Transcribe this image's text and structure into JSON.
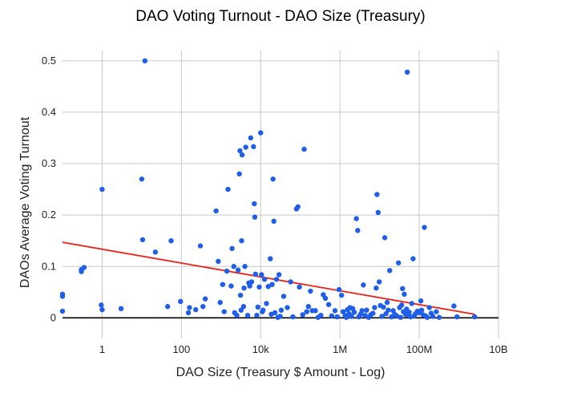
{
  "chart_data": {
    "type": "scatter",
    "title": "DAO Voting Turnout - DAO Size (Treasury)",
    "xlabel": "DAO Size (Treasury $ Amount - Log)",
    "ylabel": "DAOs Average Voting Turnout",
    "x_scale": "log10",
    "xlim": [
      0.1,
      10000000000
    ],
    "ylim": [
      -0.04,
      0.52
    ],
    "x_ticks": [
      {
        "value": 1,
        "label": "1"
      },
      {
        "value": 100,
        "label": "100"
      },
      {
        "value": 10000,
        "label": "10k"
      },
      {
        "value": 1000000,
        "label": "1M"
      },
      {
        "value": 100000000,
        "label": "100M"
      },
      {
        "value": 10000000000,
        "label": "10B"
      }
    ],
    "y_ticks": [
      {
        "value": 0,
        "label": "0"
      },
      {
        "value": 0.1,
        "label": "0.1"
      },
      {
        "value": 0.2,
        "label": "0.2"
      },
      {
        "value": 0.3,
        "label": "0.3"
      },
      {
        "value": 0.4,
        "label": "0.4"
      },
      {
        "value": 0.5,
        "label": "0.5"
      }
    ],
    "grid": true,
    "colors": {
      "points": "#1f5ee8",
      "trendline": "#e8201a",
      "zero_line": "#000000",
      "grid": "#c8c8c8"
    },
    "trendline": {
      "x_start": 0.1,
      "y_start": 0.147,
      "x_end": 2500000000,
      "y_end": 0.007
    },
    "points": [
      [
        0.1,
        0.046
      ],
      [
        0.1,
        0.042
      ],
      [
        0.1,
        0.013
      ],
      [
        0.3,
        0.09
      ],
      [
        0.3,
        0.094
      ],
      [
        0.35,
        0.098
      ],
      [
        0.95,
        0.025
      ],
      [
        1,
        0.016
      ],
      [
        1,
        0.25
      ],
      [
        3,
        0.018
      ],
      [
        10,
        0.27
      ],
      [
        10.5,
        0.152
      ],
      [
        12,
        0.5
      ],
      [
        22,
        0.128
      ],
      [
        45,
        0.022
      ],
      [
        55,
        0.15
      ],
      [
        95,
        0.032
      ],
      [
        150,
        0.01
      ],
      [
        160,
        0.02
      ],
      [
        230,
        0.016
      ],
      [
        300,
        0.14
      ],
      [
        350,
        0.022
      ],
      [
        400,
        0.037
      ],
      [
        750,
        0.208
      ],
      [
        850,
        0.11
      ],
      [
        950,
        0.03
      ],
      [
        1100,
        0.065
      ],
      [
        1200,
        0.012
      ],
      [
        1400,
        0.091
      ],
      [
        1500,
        0.25
      ],
      [
        1800,
        0.062
      ],
      [
        1900,
        0.135
      ],
      [
        2100,
        0.1
      ],
      [
        2200,
        0.01
      ],
      [
        2500,
        0.005
      ],
      [
        2700,
        0.093
      ],
      [
        2900,
        0.28
      ],
      [
        3000,
        0.325
      ],
      [
        3100,
        0.044
      ],
      [
        3200,
        0.015
      ],
      [
        3300,
        0.15
      ],
      [
        3400,
        0.317
      ],
      [
        3700,
        0.022
      ],
      [
        3800,
        0.058
      ],
      [
        4000,
        0.1
      ],
      [
        4200,
        0.332
      ],
      [
        4700,
        0.005
      ],
      [
        5000,
        0.068
      ],
      [
        5300,
        0.062
      ],
      [
        5600,
        0.35
      ],
      [
        5900,
        0.07
      ],
      [
        6600,
        0.333
      ],
      [
        6900,
        0.222
      ],
      [
        7100,
        0.196
      ],
      [
        7400,
        0.085
      ],
      [
        8000,
        0.005
      ],
      [
        8500,
        0.021
      ],
      [
        9200,
        0.06
      ],
      [
        10000,
        0.36
      ],
      [
        10500,
        0.084
      ],
      [
        11000,
        0.012
      ],
      [
        11500,
        0.015
      ],
      [
        12500,
        0.075
      ],
      [
        14000,
        0.028
      ],
      [
        15500,
        0.061
      ],
      [
        17500,
        0.115
      ],
      [
        18500,
        0.007
      ],
      [
        19500,
        0.065
      ],
      [
        20500,
        0.27
      ],
      [
        21500,
        0.188
      ],
      [
        23000,
        0.01
      ],
      [
        25000,
        0.075
      ],
      [
        27000,
        0.001
      ],
      [
        29000,
        0.084
      ],
      [
        31000,
        0.003
      ],
      [
        33000,
        0.015
      ],
      [
        38000,
        0.042
      ],
      [
        47000,
        0.02
      ],
      [
        57000,
        0.07
      ],
      [
        65000,
        0.002
      ],
      [
        80000,
        0.212
      ],
      [
        87000,
        0.216
      ],
      [
        95000,
        0.06
      ],
      [
        115000,
        0.006
      ],
      [
        125000,
        0.328
      ],
      [
        145000,
        0.012
      ],
      [
        160000,
        0.022
      ],
      [
        180000,
        0.052
      ],
      [
        200000,
        0.014
      ],
      [
        240000,
        0.014
      ],
      [
        280000,
        0.001
      ],
      [
        330000,
        0.005
      ],
      [
        380000,
        0.045
      ],
      [
        430000,
        0.038
      ],
      [
        520000,
        0.026
      ],
      [
        620000,
        0.004
      ],
      [
        750000,
        0.014
      ],
      [
        850000,
        0.002
      ],
      [
        950000,
        0.055
      ],
      [
        1100000,
        0.044
      ],
      [
        1200000,
        0.012
      ],
      [
        1350000,
        0.005
      ],
      [
        1450000,
        0.001
      ],
      [
        1550000,
        0.016
      ],
      [
        1700000,
        0.008
      ],
      [
        1800000,
        0.02
      ],
      [
        1950000,
        0.003
      ],
      [
        2100000,
        0.018
      ],
      [
        2300000,
        0.011
      ],
      [
        2600000,
        0.193
      ],
      [
        2800000,
        0.17
      ],
      [
        3000000,
        0.002
      ],
      [
        3300000,
        0.007
      ],
      [
        3600000,
        0.014
      ],
      [
        3900000,
        0.064
      ],
      [
        4300000,
        0.005
      ],
      [
        4700000,
        0.015
      ],
      [
        5300000,
        0.001
      ],
      [
        6000000,
        0.006
      ],
      [
        6800000,
        0.009
      ],
      [
        7500000,
        0.02
      ],
      [
        8200000,
        0.058
      ],
      [
        8600000,
        0.24
      ],
      [
        9200000,
        0.205
      ],
      [
        9800000,
        0.07
      ],
      [
        10500000,
        0.024
      ],
      [
        11500000,
        0.003
      ],
      [
        12500000,
        0.021
      ],
      [
        13500000,
        0.156
      ],
      [
        14500000,
        0.008
      ],
      [
        15500000,
        0.03
      ],
      [
        16500000,
        0.015
      ],
      [
        18000000,
        0.092
      ],
      [
        20000000,
        0.002
      ],
      [
        22000000,
        0.014
      ],
      [
        24000000,
        0.007
      ],
      [
        27000000,
        0.004
      ],
      [
        30000000,
        0.107
      ],
      [
        32000000,
        0.02
      ],
      [
        34000000,
        0.001
      ],
      [
        36000000,
        0.025
      ],
      [
        38000000,
        0.057
      ],
      [
        40000000,
        0.012
      ],
      [
        42000000,
        0.046
      ],
      [
        45000000,
        0.007
      ],
      [
        48000000,
        0.017
      ],
      [
        50000000,
        0.478
      ],
      [
        53000000,
        0.005
      ],
      [
        56000000,
        0.011
      ],
      [
        60000000,
        0.002
      ],
      [
        65000000,
        0.028
      ],
      [
        70000000,
        0.115
      ],
      [
        75000000,
        0.004
      ],
      [
        80000000,
        0.008
      ],
      [
        90000000,
        0.013
      ],
      [
        100000000,
        0.01
      ],
      [
        110000000,
        0.033
      ],
      [
        115000000,
        0.015
      ],
      [
        125000000,
        0.006
      ],
      [
        135000000,
        0.176
      ],
      [
        145000000,
        0.004
      ],
      [
        160000000,
        0.001
      ],
      [
        180000000,
        0.02
      ],
      [
        200000000,
        0.009
      ],
      [
        220000000,
        0.003
      ],
      [
        270000000,
        0.012
      ],
      [
        320000000,
        0.001
      ],
      [
        750000000,
        0.023
      ],
      [
        900000000,
        0.002
      ],
      [
        2500000000,
        0.002
      ]
    ]
  }
}
